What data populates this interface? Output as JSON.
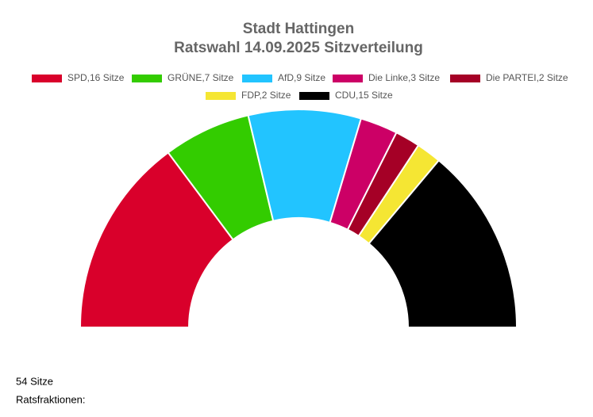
{
  "chart_data": {
    "type": "semicircle",
    "title": "Stadt Hattingen",
    "subtitle": "Ratswahl 14.09.2025 Sitzverteilung",
    "values": [
      16,
      7,
      9,
      3,
      2,
      2,
      15
    ],
    "value_labels": [
      "SPD,16 Sitze",
      "GRÜNE,7 Sitze",
      "AfD,9 Sitze",
      "Die Linke,3 Sitze",
      "Die PARTEI,2 Sitze",
      "FDP,2 Sitze",
      "CDU,15 Sitze"
    ],
    "colors": [
      "#d9002b",
      "#33cc00",
      "#22c4ff",
      "#cc0066",
      "#a50026",
      "#f5e633",
      "#000000"
    ],
    "footer": [
      "54 Sitze",
      "Ratsfraktionen:"
    ]
  }
}
